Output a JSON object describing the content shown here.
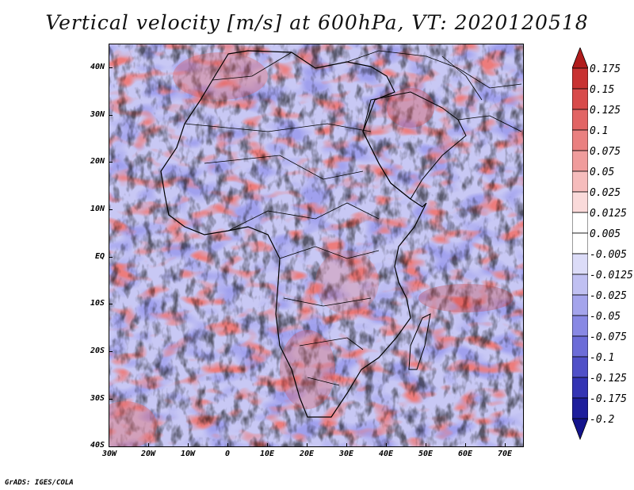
{
  "title": "Vertical velocity [m/s] at 600hPa, VT: 2020120518",
  "credit": "GrADS: IGES/COLA",
  "axes": {
    "y_labels": [
      "40N",
      "30N",
      "20N",
      "10N",
      "EQ",
      "10S",
      "20S",
      "30S",
      "40S"
    ],
    "x_labels": [
      "30W",
      "20W",
      "10W",
      "0",
      "10E",
      "20E",
      "30E",
      "40E",
      "50E",
      "60E",
      "70E"
    ]
  },
  "colorbar": {
    "levels": [
      "0.175",
      "0.15",
      "0.125",
      "0.1",
      "0.075",
      "0.05",
      "0.025",
      "0.0125",
      "0.005",
      "-0.005",
      "-0.0125",
      "-0.025",
      "-0.05",
      "-0.075",
      "-0.1",
      "-0.125",
      "-0.175",
      "-0.2"
    ],
    "colors": [
      "#b01c1c",
      "#c83232",
      "#d84a4a",
      "#e26464",
      "#ea8080",
      "#f09c9c",
      "#f6bcbc",
      "#fadada",
      "#ffffff",
      "#ffffff",
      "#dcdcf8",
      "#c0c0f2",
      "#a4a4ec",
      "#8888e4",
      "#6c6cd8",
      "#5050c8",
      "#3434b4",
      "#1e1e9c",
      "#14148c"
    ]
  }
}
